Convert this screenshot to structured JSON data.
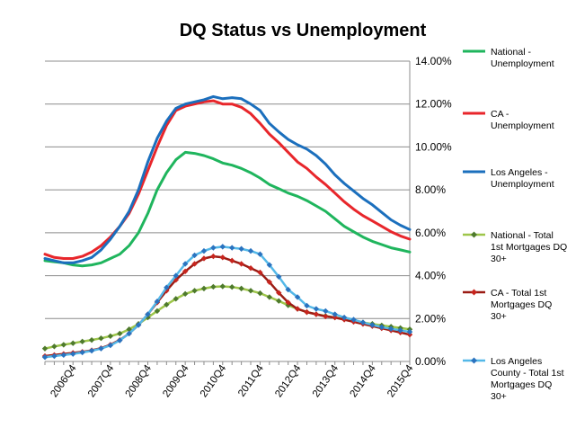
{
  "chart_data": {
    "type": "line",
    "title": "DQ Status vs Unemployment",
    "y_axis_position": "right",
    "legend_position": "right",
    "grid": "horizontal",
    "ylim": [
      0,
      14
    ],
    "y_ticks": [
      {
        "value": 0,
        "label": "0.00%"
      },
      {
        "value": 2,
        "label": "2.00%"
      },
      {
        "value": 4,
        "label": "4.00%"
      },
      {
        "value": 6,
        "label": "6.00%"
      },
      {
        "value": 8,
        "label": "8.00%"
      },
      {
        "value": 10,
        "label": "10.00%"
      },
      {
        "value": 12,
        "label": "12.00%"
      },
      {
        "value": 14,
        "label": "14.00%"
      }
    ],
    "x": [
      "2006Q1",
      "2006Q2",
      "2006Q3",
      "2006Q4",
      "2007Q1",
      "2007Q2",
      "2007Q3",
      "2007Q4",
      "2008Q1",
      "2008Q2",
      "2008Q3",
      "2008Q4",
      "2009Q1",
      "2009Q2",
      "2009Q3",
      "2009Q4",
      "2010Q1",
      "2010Q2",
      "2010Q3",
      "2010Q4",
      "2011Q1",
      "2011Q2",
      "2011Q3",
      "2011Q4",
      "2012Q1",
      "2012Q2",
      "2012Q3",
      "2012Q4",
      "2013Q1",
      "2013Q2",
      "2013Q3",
      "2013Q4",
      "2014Q1",
      "2014Q2",
      "2014Q3",
      "2014Q4",
      "2015Q1",
      "2015Q2",
      "2015Q3",
      "2015Q4"
    ],
    "x_tick_labels": [
      {
        "index": 3,
        "label": "2006Q4"
      },
      {
        "index": 7,
        "label": "2007Q4"
      },
      {
        "index": 11,
        "label": "2008Q4"
      },
      {
        "index": 15,
        "label": "2009Q4"
      },
      {
        "index": 19,
        "label": "2010Q4"
      },
      {
        "index": 23,
        "label": "2011Q4"
      },
      {
        "index": 27,
        "label": "2012Q4"
      },
      {
        "index": 31,
        "label": "2013Q4"
      },
      {
        "index": 35,
        "label": "2014Q4"
      },
      {
        "index": 39,
        "label": "2015Q4"
      }
    ],
    "series": [
      {
        "name": "National - Unemployment",
        "legend_lines": [
          "National -",
          "Unemployment"
        ],
        "color": "#1fb55d",
        "marker": "none",
        "values": [
          4.7,
          4.65,
          4.6,
          4.5,
          4.45,
          4.5,
          4.6,
          4.8,
          5.0,
          5.4,
          6.0,
          6.9,
          8.0,
          8.8,
          9.4,
          9.75,
          9.7,
          9.6,
          9.45,
          9.25,
          9.15,
          9.0,
          8.8,
          8.55,
          8.25,
          8.05,
          7.85,
          7.7,
          7.5,
          7.25,
          7.0,
          6.65,
          6.3,
          6.05,
          5.8,
          5.6,
          5.45,
          5.3,
          5.2,
          5.1
        ]
      },
      {
        "name": "CA - Unemployment",
        "legend_lines": [
          "CA -",
          "Unemployment"
        ],
        "color": "#e8262b",
        "marker": "none",
        "values": [
          5.0,
          4.85,
          4.8,
          4.8,
          4.9,
          5.1,
          5.4,
          5.8,
          6.3,
          6.9,
          7.8,
          8.9,
          10.0,
          11.0,
          11.7,
          11.9,
          12.0,
          12.1,
          12.15,
          12.0,
          12.0,
          11.85,
          11.55,
          11.1,
          10.6,
          10.2,
          9.75,
          9.3,
          9.0,
          8.6,
          8.25,
          7.85,
          7.45,
          7.1,
          6.8,
          6.55,
          6.3,
          6.05,
          5.85,
          5.7
        ]
      },
      {
        "name": "Los Angeles - Unemployment",
        "legend_lines": [
          "Los Angeles -",
          "Unemployment"
        ],
        "color": "#1b6fbd",
        "marker": "none",
        "values": [
          4.8,
          4.7,
          4.6,
          4.6,
          4.7,
          4.85,
          5.2,
          5.7,
          6.3,
          7.0,
          8.0,
          9.3,
          10.4,
          11.2,
          11.8,
          12.0,
          12.1,
          12.2,
          12.35,
          12.25,
          12.3,
          12.25,
          12.0,
          11.7,
          11.1,
          10.7,
          10.35,
          10.1,
          9.9,
          9.6,
          9.2,
          8.7,
          8.3,
          7.95,
          7.6,
          7.3,
          6.95,
          6.6,
          6.35,
          6.15
        ]
      },
      {
        "name": "National - Total 1st Mortgages DQ 30+",
        "legend_lines": [
          "National - Total",
          "1st Mortgages DQ",
          "30+"
        ],
        "color": "#9ec64a",
        "marker_color": "#4e7a2c",
        "marker": "diamond",
        "values": [
          0.6,
          0.7,
          0.78,
          0.85,
          0.93,
          1.0,
          1.08,
          1.18,
          1.3,
          1.5,
          1.75,
          2.05,
          2.35,
          2.65,
          2.92,
          3.15,
          3.3,
          3.4,
          3.48,
          3.5,
          3.47,
          3.4,
          3.3,
          3.18,
          3.0,
          2.82,
          2.62,
          2.45,
          2.3,
          2.2,
          2.12,
          2.05,
          1.98,
          1.9,
          1.82,
          1.75,
          1.68,
          1.62,
          1.56,
          1.5
        ]
      },
      {
        "name": "CA - Total 1st Mortgages DQ 30+",
        "legend_lines": [
          "CA - Total 1st",
          "Mortgages DQ",
          "30+"
        ],
        "color": "#9b1c14",
        "marker_color": "#c7251e",
        "marker": "diamond",
        "values": [
          0.25,
          0.3,
          0.35,
          0.4,
          0.45,
          0.52,
          0.62,
          0.78,
          1.0,
          1.3,
          1.7,
          2.2,
          2.75,
          3.3,
          3.8,
          4.2,
          4.55,
          4.8,
          4.9,
          4.85,
          4.7,
          4.55,
          4.35,
          4.15,
          3.7,
          3.2,
          2.75,
          2.45,
          2.3,
          2.2,
          2.1,
          2.05,
          1.95,
          1.85,
          1.75,
          1.65,
          1.55,
          1.45,
          1.35,
          1.25
        ]
      },
      {
        "name": "Los Angeles County - Total 1st Mortgages DQ 30+",
        "legend_lines": [
          "Los Angeles",
          "County - Total 1st",
          "Mortgages DQ",
          "30+"
        ],
        "color": "#54b8e8",
        "marker_color": "#2a73bf",
        "marker": "diamond",
        "values": [
          0.2,
          0.25,
          0.3,
          0.35,
          0.42,
          0.5,
          0.6,
          0.75,
          0.98,
          1.3,
          1.7,
          2.2,
          2.8,
          3.45,
          4.0,
          4.55,
          4.95,
          5.15,
          5.3,
          5.35,
          5.3,
          5.25,
          5.15,
          5.0,
          4.5,
          3.95,
          3.35,
          3.0,
          2.6,
          2.45,
          2.35,
          2.2,
          2.05,
          1.95,
          1.82,
          1.7,
          1.6,
          1.52,
          1.45,
          1.38
        ]
      }
    ]
  }
}
